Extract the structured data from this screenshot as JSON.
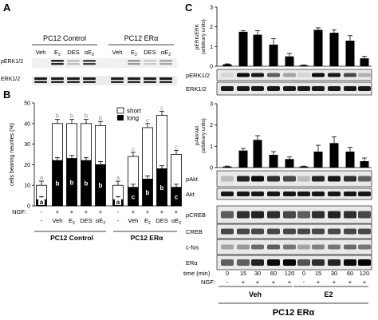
{
  "panels": {
    "a": "A",
    "b": "B",
    "c": "C"
  },
  "panel_a": {
    "group_left": "PC12 Control",
    "group_right": "PC12 ERα",
    "lanes": [
      "Veh",
      "E2",
      "DES",
      "αE2"
    ],
    "rows": [
      "pERK1/2",
      "ERK1/2"
    ]
  },
  "panel_b": {
    "ylabel": "cells bearing neurites (%)",
    "legend": [
      "short",
      "long"
    ],
    "ngf_label": "NGF:",
    "ngf_signs": [
      "-",
      "+",
      "+",
      "+",
      "+"
    ],
    "treatments": [
      "-",
      "Veh",
      "E2",
      "DES",
      "αE2"
    ],
    "group_left": "PC12 Control",
    "group_right": "PC12 ERα"
  },
  "panel_c": {
    "chart1_ylabel": "pERK/ERK (arbitrary units)",
    "chart2_ylabel": "pAkt/Akt (arbitrary units)",
    "rows_erk": [
      "pERK1/2",
      "ERK1/2"
    ],
    "rows_akt": [
      "pAkt",
      "Akt"
    ],
    "rows_bottom": [
      "pCREB",
      "CREB",
      "c-fos",
      "ERα"
    ],
    "time_label": "time (min)",
    "times": [
      "0",
      "15",
      "30",
      "60",
      "120",
      "0",
      "15",
      "30",
      "60",
      "120"
    ],
    "ngf_label": "NGF:",
    "ngf_signs": [
      "-",
      "+",
      "+",
      "+",
      "+",
      "-",
      "+",
      "+",
      "+",
      "+"
    ],
    "group_left": "Veh",
    "group_right": "E2",
    "footer": "PC12 ERα"
  },
  "chart_data": [
    {
      "type": "bar",
      "panel": "B",
      "ylabel": "cells bearing neurites (%)",
      "ylim": [
        0,
        50
      ],
      "yticks": [
        0,
        10,
        20,
        30,
        40,
        50
      ],
      "groups": [
        "PC12 Control",
        "PC12 ERα"
      ],
      "categories": [
        "-",
        "Veh",
        "E2",
        "DES",
        "αE2"
      ],
      "series": [
        {
          "name": "long",
          "values_by_group": [
            [
              3,
              22,
              23,
              22,
              20
            ],
            [
              3,
              9,
              13,
              18,
              9
            ]
          ]
        },
        {
          "name": "short",
          "values_by_group": [
            [
              7,
              18,
              17,
              18,
              19
            ],
            [
              7,
              15,
              25,
              26,
              16
            ]
          ]
        }
      ],
      "totals_by_group": [
        [
          10,
          40,
          40,
          40,
          39
        ],
        [
          10,
          24,
          38,
          44,
          25
        ]
      ],
      "long_labels": [
        [
          "a",
          "b",
          "b",
          "b",
          "b"
        ],
        [
          "a",
          "c",
          "b",
          "b",
          "c"
        ]
      ],
      "short_labels": [
        [
          "a",
          "b",
          "b",
          "b",
          "b"
        ],
        [
          "a",
          "c",
          "c",
          "c",
          "c"
        ]
      ]
    },
    {
      "type": "bar",
      "panel": "C top",
      "ylabel": "pERK/ERK (arbitrary units)",
      "ylim": [
        0,
        3
      ],
      "yticks": [
        0,
        1,
        2,
        3
      ],
      "categories": [
        "0",
        "15",
        "30",
        "60",
        "120",
        "0",
        "15",
        "30",
        "60",
        "120"
      ],
      "groups": [
        "Veh",
        "E2"
      ],
      "values": [
        0.1,
        1.75,
        1.6,
        1.1,
        0.5,
        0.05,
        1.85,
        1.7,
        1.3,
        0.4
      ],
      "errors": [
        0.02,
        0.05,
        0.2,
        0.3,
        0.15,
        0.02,
        0.1,
        0.15,
        0.25,
        0.1
      ]
    },
    {
      "type": "bar",
      "panel": "C bottom",
      "ylabel": "pAkt/Akt (arbitrary units)",
      "ylim": [
        0,
        3
      ],
      "yticks": [
        0,
        1,
        2,
        3
      ],
      "categories": [
        "0",
        "15",
        "30",
        "60",
        "120",
        "0",
        "15",
        "30",
        "60",
        "120"
      ],
      "groups": [
        "Veh",
        "E2"
      ],
      "values": [
        0.05,
        0.8,
        1.3,
        0.6,
        0.4,
        0.05,
        0.75,
        1.15,
        0.75,
        0.3
      ],
      "errors": [
        0.02,
        0.1,
        0.2,
        0.15,
        0.1,
        0.02,
        0.3,
        0.3,
        0.2,
        0.15
      ]
    }
  ]
}
